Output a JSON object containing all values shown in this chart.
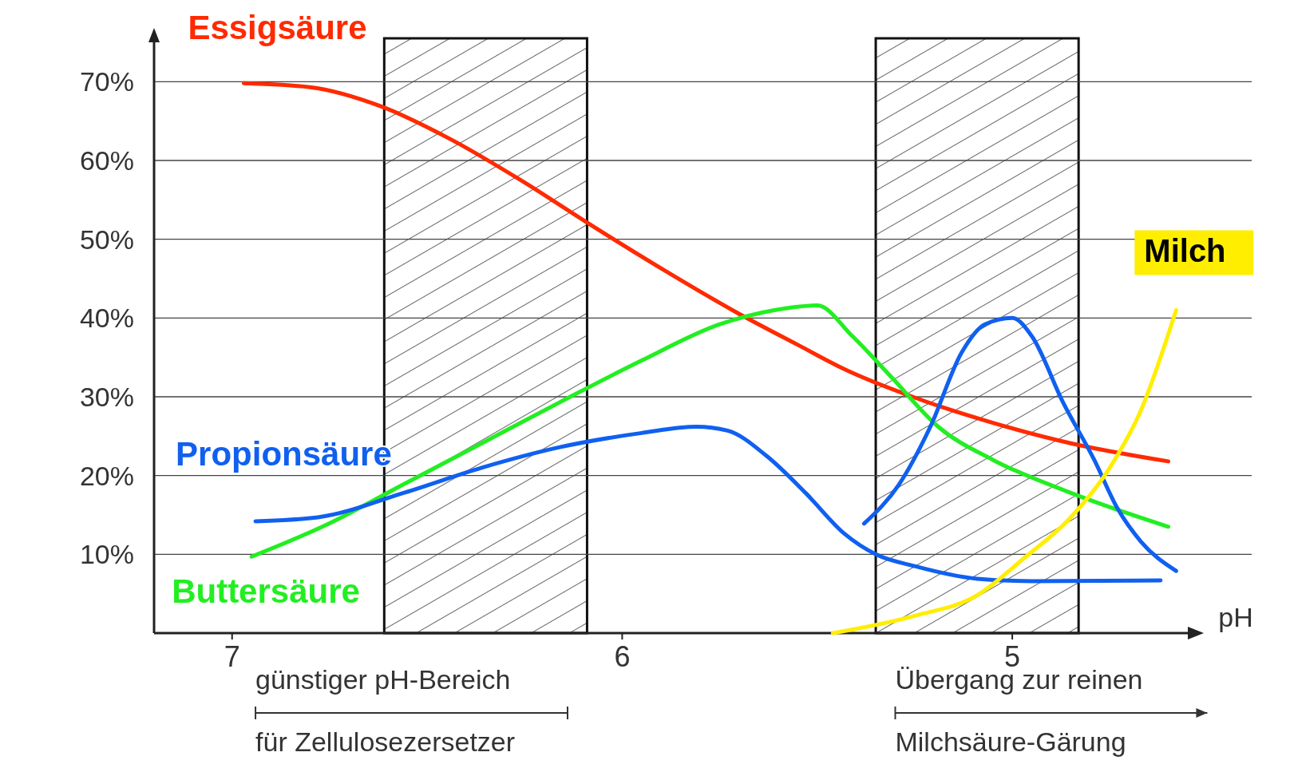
{
  "chart_data": {
    "type": "line",
    "xlabel": "pH",
    "xlim": [
      7.2,
      4.55
    ],
    "ylim": [
      0,
      75
    ],
    "xticks": [
      7,
      6,
      5
    ],
    "yticks": [
      {
        "value": 10,
        "label": "10%"
      },
      {
        "value": 20,
        "label": "20%"
      },
      {
        "value": 30,
        "label": "30%"
      },
      {
        "value": 40,
        "label": "40%"
      },
      {
        "value": 50,
        "label": "50%"
      },
      {
        "value": 60,
        "label": "60%"
      },
      {
        "value": 70,
        "label": "70%"
      }
    ],
    "grid": "y",
    "bands": [
      {
        "axis": "x",
        "from": 6.61,
        "to": 6.09
      },
      {
        "axis": "x",
        "from": 5.35,
        "to": 4.83
      }
    ],
    "annotations": [
      "günstiger pH-Bereich für Zellulosezersetzer",
      "Übergang zur reinen Milchsäure-Gärung"
    ],
    "series": [
      {
        "name": "Essigsäure",
        "color": "#ff2a00",
        "x": [
          6.97,
          6.8,
          6.62,
          6.44,
          6.26,
          6.08,
          5.89,
          5.71,
          5.55,
          5.43,
          5.25,
          5.05,
          4.85,
          4.6
        ],
        "values": [
          69.8,
          69.3,
          66.9,
          62.7,
          57.5,
          51.8,
          46,
          40.8,
          36.6,
          33.5,
          29.9,
          26.7,
          24.1,
          21.8
        ]
      },
      {
        "name": "Buttersäure",
        "color": "#22ee22",
        "x": [
          6.95,
          6.76,
          6.56,
          6.36,
          6.16,
          5.95,
          5.75,
          5.61,
          5.5,
          5.41,
          5.31,
          5.19,
          5.05,
          4.85,
          4.6
        ],
        "values": [
          9.7,
          13.7,
          18.9,
          24.1,
          29.3,
          34.6,
          39.2,
          41,
          41.6,
          37.7,
          32.5,
          26.2,
          22,
          17.8,
          13.5
        ]
      },
      {
        "name": "Propionsäure",
        "color": "#1060f0",
        "x": [
          6.94,
          6.78,
          6.56,
          6.36,
          6.16,
          5.95,
          5.81,
          5.73,
          5.63,
          5.53,
          5.43,
          5.35,
          5.25,
          5.09,
          4.95,
          4.62
        ],
        "values": [
          14.2,
          14.7,
          17.8,
          21,
          23.6,
          25.4,
          26.2,
          25.7,
          22.5,
          17.8,
          12.6,
          10,
          8.5,
          6.9,
          6.6,
          6.7
        ]
      },
      {
        "color": "#1060f0",
        "x": [
          5.38,
          5.29,
          5.21,
          5.13,
          5.07,
          5,
          4.95,
          4.87,
          4.79,
          4.73,
          4.67,
          4.58
        ],
        "values": [
          13.9,
          18.9,
          26.2,
          35.6,
          39.2,
          40,
          37.7,
          29.3,
          22,
          15.8,
          11.6,
          7.9
        ]
      },
      {
        "name": "Milch",
        "color": "#ffee00",
        "x": [
          5.46,
          5.25,
          5.09,
          4.97,
          4.85,
          4.75,
          4.67,
          4.58
        ],
        "values": [
          0,
          2.2,
          4.8,
          9.5,
          14.7,
          21,
          28.3,
          41
        ]
      }
    ]
  }
}
